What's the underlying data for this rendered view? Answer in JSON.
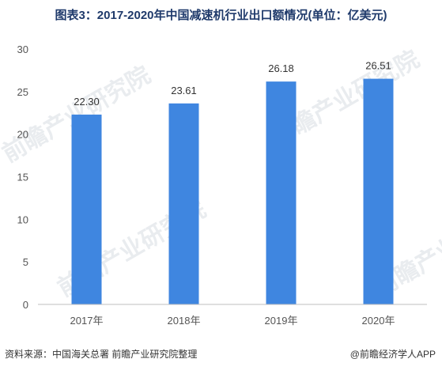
{
  "chart_data": {
    "type": "bar",
    "title": "图表3：2017-2020年中国减速机行业出口额情况(单位：亿美元)",
    "categories": [
      "2017年",
      "2018年",
      "2019年",
      "2020年"
    ],
    "values": [
      22.3,
      23.61,
      26.18,
      26.51
    ],
    "value_labels": [
      "22.30",
      "23.61",
      "26.18",
      "26.51"
    ],
    "ylim": [
      0,
      30
    ],
    "yticks": [
      "0",
      "5",
      "10",
      "15",
      "20",
      "25",
      "30"
    ],
    "grid": false,
    "bar_color": "#3f86e0"
  },
  "footer": {
    "source": "资料来源：中国海关总署 前瞻产业研究院整理",
    "credit": "@前瞻经济学人APP"
  },
  "watermark": {
    "logo_text": "前瞻产业研究院"
  }
}
